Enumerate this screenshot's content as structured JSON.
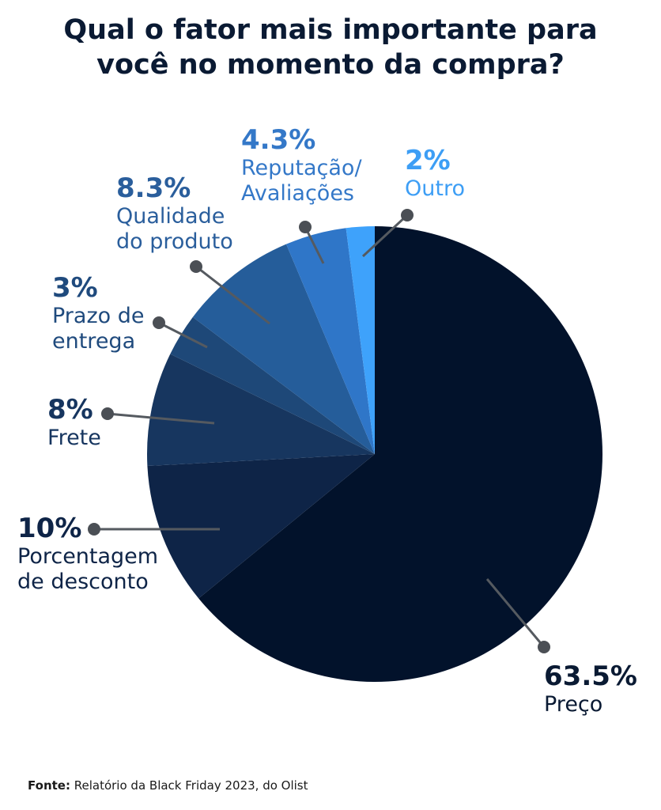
{
  "title_line1": "Qual o fator mais importante para",
  "title_line2": "você no momento da compra?",
  "source_label": "Fonte:",
  "source_text": "Relatório da Black Friday 2023, do Olist",
  "chart_data": {
    "type": "pie",
    "title": "Qual o fator mais importante para você no momento da compra?",
    "slices": [
      {
        "label_line1": "Preço",
        "label_line2": "",
        "value": 63.5,
        "value_label": "63.5%",
        "color": "#02122b",
        "label_color": "#0a1a33"
      },
      {
        "label_line1": "Porcentagem",
        "label_line2": "de desconto",
        "value": 10,
        "value_label": "10%",
        "color": "#0e2447",
        "label_color": "#0e2447"
      },
      {
        "label_line1": "Frete",
        "label_line2": "",
        "value": 8,
        "value_label": "8%",
        "color": "#17365f",
        "label_color": "#16355f"
      },
      {
        "label_line1": "Prazo de",
        "label_line2": "entrega",
        "value": 3,
        "value_label": "3%",
        "color": "#1e4878",
        "label_color": "#1f4a7d"
      },
      {
        "label_line1": "Qualidade",
        "label_line2": "do produto",
        "value": 8.3,
        "value_label": "8.3%",
        "color": "#255d9a",
        "label_color": "#2a5e9c"
      },
      {
        "label_line1": "Reputação/",
        "label_line2": "Avaliações",
        "value": 4.3,
        "value_label": "4.3%",
        "color": "#2f76c8",
        "label_color": "#3478c8"
      },
      {
        "label_line1": "Outro",
        "label_line2": "",
        "value": 2,
        "value_label": "2%",
        "color": "#3ea2fb",
        "label_color": "#3d9ef5"
      }
    ]
  }
}
